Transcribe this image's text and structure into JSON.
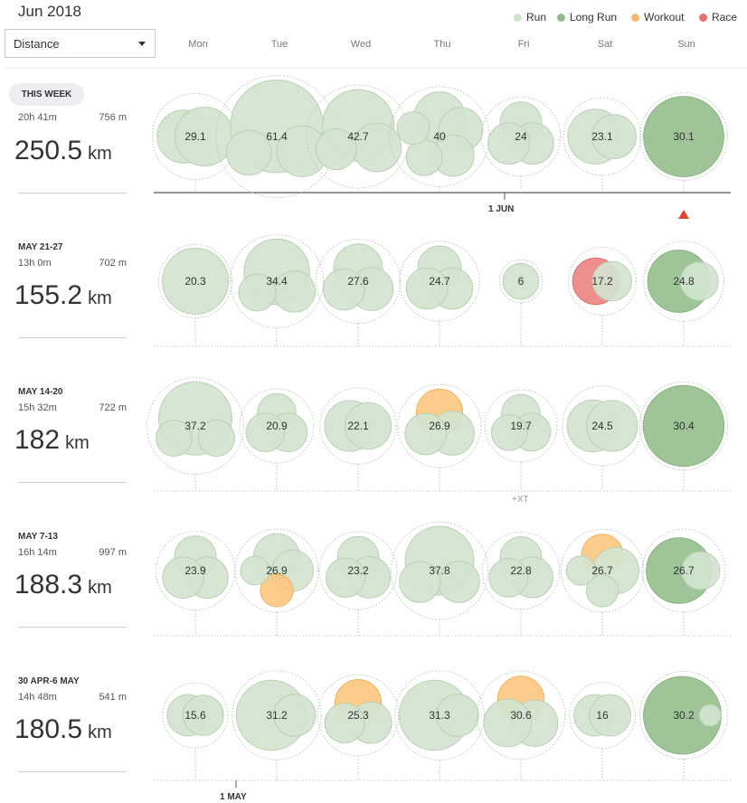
{
  "header": {
    "month_title": "Jun 2018",
    "metric_select": {
      "value": "Distance"
    },
    "days": [
      "Mon",
      "Tue",
      "Wed",
      "Thu",
      "Fri",
      "Sat",
      "Sun"
    ]
  },
  "legend": [
    {
      "label": "Run",
      "color": "#cfe3cc"
    },
    {
      "label": "Long Run",
      "color": "#8fbc8a"
    },
    {
      "label": "Workout",
      "color": "#f5b870"
    },
    {
      "label": "Race",
      "color": "#e8706c"
    }
  ],
  "colors": {
    "run": "#d2e4cf",
    "long_run": "#96bf8f",
    "workout": "#fcc880",
    "race": "#ec8582",
    "run_stroke": "#b8d1b3",
    "long_run_stroke": "#87b27f",
    "workout_stroke": "#f0b060",
    "race_stroke": "#e06a66",
    "today_marker": "#e8442b"
  },
  "weeks": [
    {
      "label": "THIS WEEK",
      "is_current": true,
      "time": "20h 41m",
      "elevation": "756 m",
      "distance": "250.5",
      "unit": "km",
      "days": [
        {
          "value": "29.1",
          "total": 29.1,
          "activities": [
            {
              "type": "run",
              "km": 13
            },
            {
              "type": "run",
              "km": 16.1
            }
          ]
        },
        {
          "value": "61.4",
          "total": 61.4,
          "activities": [
            {
              "type": "run",
              "km": 40
            },
            {
              "type": "run",
              "km": 12
            },
            {
              "type": "run",
              "km": 9.4
            }
          ]
        },
        {
          "value": "42.7",
          "total": 42.7,
          "activities": [
            {
              "type": "run",
              "km": 24
            },
            {
              "type": "run",
              "km": 11
            },
            {
              "type": "run",
              "km": 7.7
            }
          ]
        },
        {
          "value": "40",
          "total": 40,
          "activities": [
            {
              "type": "run",
              "km": 12
            },
            {
              "type": "run",
              "km": 9
            },
            {
              "type": "run",
              "km": 8
            },
            {
              "type": "run",
              "km": 6
            },
            {
              "type": "run",
              "km": 5
            }
          ]
        },
        {
          "value": "24",
          "total": 24,
          "activities": [
            {
              "type": "run",
              "km": 8
            },
            {
              "type": "run",
              "km": 8
            },
            {
              "type": "run",
              "km": 8
            }
          ]
        },
        {
          "value": "23.1",
          "total": 23.1,
          "activities": [
            {
              "type": "run",
              "km": 14
            },
            {
              "type": "run",
              "km": 9.1
            }
          ]
        },
        {
          "value": "30.1",
          "total": 30.1,
          "activities": [
            {
              "type": "long_run",
              "km": 30.1
            }
          ]
        }
      ]
    },
    {
      "label": "MAY 21-27",
      "is_current": false,
      "time": "13h 0m",
      "elevation": "702 m",
      "distance": "155.2",
      "unit": "km",
      "days": [
        {
          "value": "20.3",
          "total": 20.3,
          "activities": [
            {
              "type": "run",
              "km": 20.3
            }
          ]
        },
        {
          "value": "34.4",
          "total": 34.4,
          "activities": [
            {
              "type": "run",
              "km": 20
            },
            {
              "type": "run",
              "km": 8
            },
            {
              "type": "run",
              "km": 6.4
            }
          ]
        },
        {
          "value": "27.6",
          "total": 27.6,
          "activities": [
            {
              "type": "run",
              "km": 11
            },
            {
              "type": "run",
              "km": 8.6
            },
            {
              "type": "run",
              "km": 8
            }
          ]
        },
        {
          "value": "24.7",
          "total": 24.7,
          "activities": [
            {
              "type": "run",
              "km": 8.7
            },
            {
              "type": "run",
              "km": 8
            },
            {
              "type": "run",
              "km": 8
            }
          ]
        },
        {
          "value": "6",
          "total": 6,
          "activities": [
            {
              "type": "run",
              "km": 6
            }
          ]
        },
        {
          "value": "17.2",
          "total": 17.2,
          "activities": [
            {
              "type": "race",
              "km": 10
            },
            {
              "type": "run",
              "km": 7.2
            }
          ]
        },
        {
          "value": "24.8",
          "total": 24.8,
          "activities": [
            {
              "type": "long_run",
              "km": 18
            },
            {
              "type": "run",
              "km": 6.8
            }
          ]
        }
      ]
    },
    {
      "label": "MAY 14-20",
      "is_current": false,
      "time": "15h 32m",
      "elevation": "722 m",
      "distance": "182",
      "unit": "km",
      "days": [
        {
          "value": "37.2",
          "total": 37.2,
          "activities": [
            {
              "type": "run",
              "km": 25
            },
            {
              "type": "run",
              "km": 6.2
            },
            {
              "type": "run",
              "km": 6
            }
          ]
        },
        {
          "value": "20.9",
          "total": 20.9,
          "activities": [
            {
              "type": "run",
              "km": 7
            },
            {
              "type": "run",
              "km": 7
            },
            {
              "type": "run",
              "km": 6.9
            }
          ]
        },
        {
          "value": "22.1",
          "total": 22.1,
          "activities": [
            {
              "type": "run",
              "km": 12
            },
            {
              "type": "run",
              "km": 10.1
            }
          ]
        },
        {
          "value": "26.9",
          "total": 26.9,
          "activities": [
            {
              "type": "workout",
              "km": 10
            },
            {
              "type": "run",
              "km": 9
            },
            {
              "type": "run",
              "km": 7.9
            }
          ]
        },
        {
          "value": "19.7",
          "total": 19.7,
          "activities": [
            {
              "type": "run",
              "km": 7
            },
            {
              "type": "run",
              "km": 6.7
            },
            {
              "type": "run",
              "km": 6
            }
          ]
        },
        {
          "value": "24.5",
          "total": 24.5,
          "activities": [
            {
              "type": "run",
              "km": 12.5
            },
            {
              "type": "run",
              "km": 12
            }
          ]
        },
        {
          "value": "30.4",
          "total": 30.4,
          "activities": [
            {
              "type": "long_run",
              "km": 30.4
            }
          ]
        }
      ],
      "extra_label": "+XT",
      "extra_day_index": 4
    },
    {
      "label": "MAY 7-13",
      "is_current": false,
      "time": "16h 14m",
      "elevation": "997 m",
      "distance": "188.3",
      "unit": "km",
      "days": [
        {
          "value": "23.9",
          "total": 23.9,
          "activities": [
            {
              "type": "run",
              "km": 8
            },
            {
              "type": "run",
              "km": 8
            },
            {
              "type": "run",
              "km": 7.9
            }
          ]
        },
        {
          "value": "26.9",
          "total": 26.9,
          "activities": [
            {
              "type": "run",
              "km": 10
            },
            {
              "type": "run",
              "km": 8
            },
            {
              "type": "workout",
              "km": 5
            },
            {
              "type": "run",
              "km": 3.9
            }
          ]
        },
        {
          "value": "23.2",
          "total": 23.2,
          "activities": [
            {
              "type": "run",
              "km": 8
            },
            {
              "type": "run",
              "km": 8
            },
            {
              "type": "run",
              "km": 7.2
            }
          ]
        },
        {
          "value": "37.8",
          "total": 37.8,
          "activities": [
            {
              "type": "run",
              "km": 22
            },
            {
              "type": "run",
              "km": 8
            },
            {
              "type": "run",
              "km": 7.8
            }
          ]
        },
        {
          "value": "22.8",
          "total": 22.8,
          "activities": [
            {
              "type": "run",
              "km": 8
            },
            {
              "type": "run",
              "km": 7.8
            },
            {
              "type": "run",
              "km": 7
            }
          ]
        },
        {
          "value": "26.7",
          "total": 26.7,
          "activities": [
            {
              "type": "workout",
              "km": 8
            },
            {
              "type": "run",
              "km": 10
            },
            {
              "type": "run",
              "km": 4.7
            },
            {
              "type": "run",
              "km": 4
            }
          ]
        },
        {
          "value": "26.7",
          "total": 26.7,
          "activities": [
            {
              "type": "long_run",
              "km": 20
            },
            {
              "type": "run",
              "km": 6.7
            }
          ]
        }
      ]
    },
    {
      "label": "30 APR-6 MAY",
      "is_current": false,
      "time": "14h 48m",
      "elevation": "541 m",
      "distance": "180.5",
      "unit": "km",
      "days": [
        {
          "value": "15.6",
          "total": 15.6,
          "activities": [
            {
              "type": "run",
              "km": 8
            },
            {
              "type": "run",
              "km": 7.6
            }
          ]
        },
        {
          "value": "31.2",
          "total": 31.2,
          "activities": [
            {
              "type": "run",
              "km": 23
            },
            {
              "type": "run",
              "km": 8.2
            }
          ]
        },
        {
          "value": "25.3",
          "total": 25.3,
          "activities": [
            {
              "type": "workout",
              "km": 10
            },
            {
              "type": "run",
              "km": 8
            },
            {
              "type": "run",
              "km": 7.3
            }
          ]
        },
        {
          "value": "31.3",
          "total": 31.3,
          "activities": [
            {
              "type": "run",
              "km": 23
            },
            {
              "type": "run",
              "km": 8.3
            }
          ]
        },
        {
          "value": "30.6",
          "total": 30.6,
          "activities": [
            {
              "type": "workout",
              "km": 10
            },
            {
              "type": "run",
              "km": 10
            },
            {
              "type": "run",
              "km": 10.6
            }
          ]
        },
        {
          "value": "16",
          "total": 16,
          "activities": [
            {
              "type": "run",
              "km": 8
            },
            {
              "type": "run",
              "km": 8
            }
          ]
        },
        {
          "value": "30.2",
          "total": 30.2,
          "activities": [
            {
              "type": "long_run",
              "km": 28
            },
            {
              "type": "run",
              "km": 2.2
            }
          ]
        }
      ]
    }
  ],
  "axis_labels": [
    {
      "text": "1 JUN",
      "week_index": 0,
      "day_index": 3.8
    },
    {
      "text": "1 MAY",
      "week_index": 4,
      "day_index": 0.5
    }
  ],
  "today": {
    "week_index": 0,
    "day_index": 6
  }
}
